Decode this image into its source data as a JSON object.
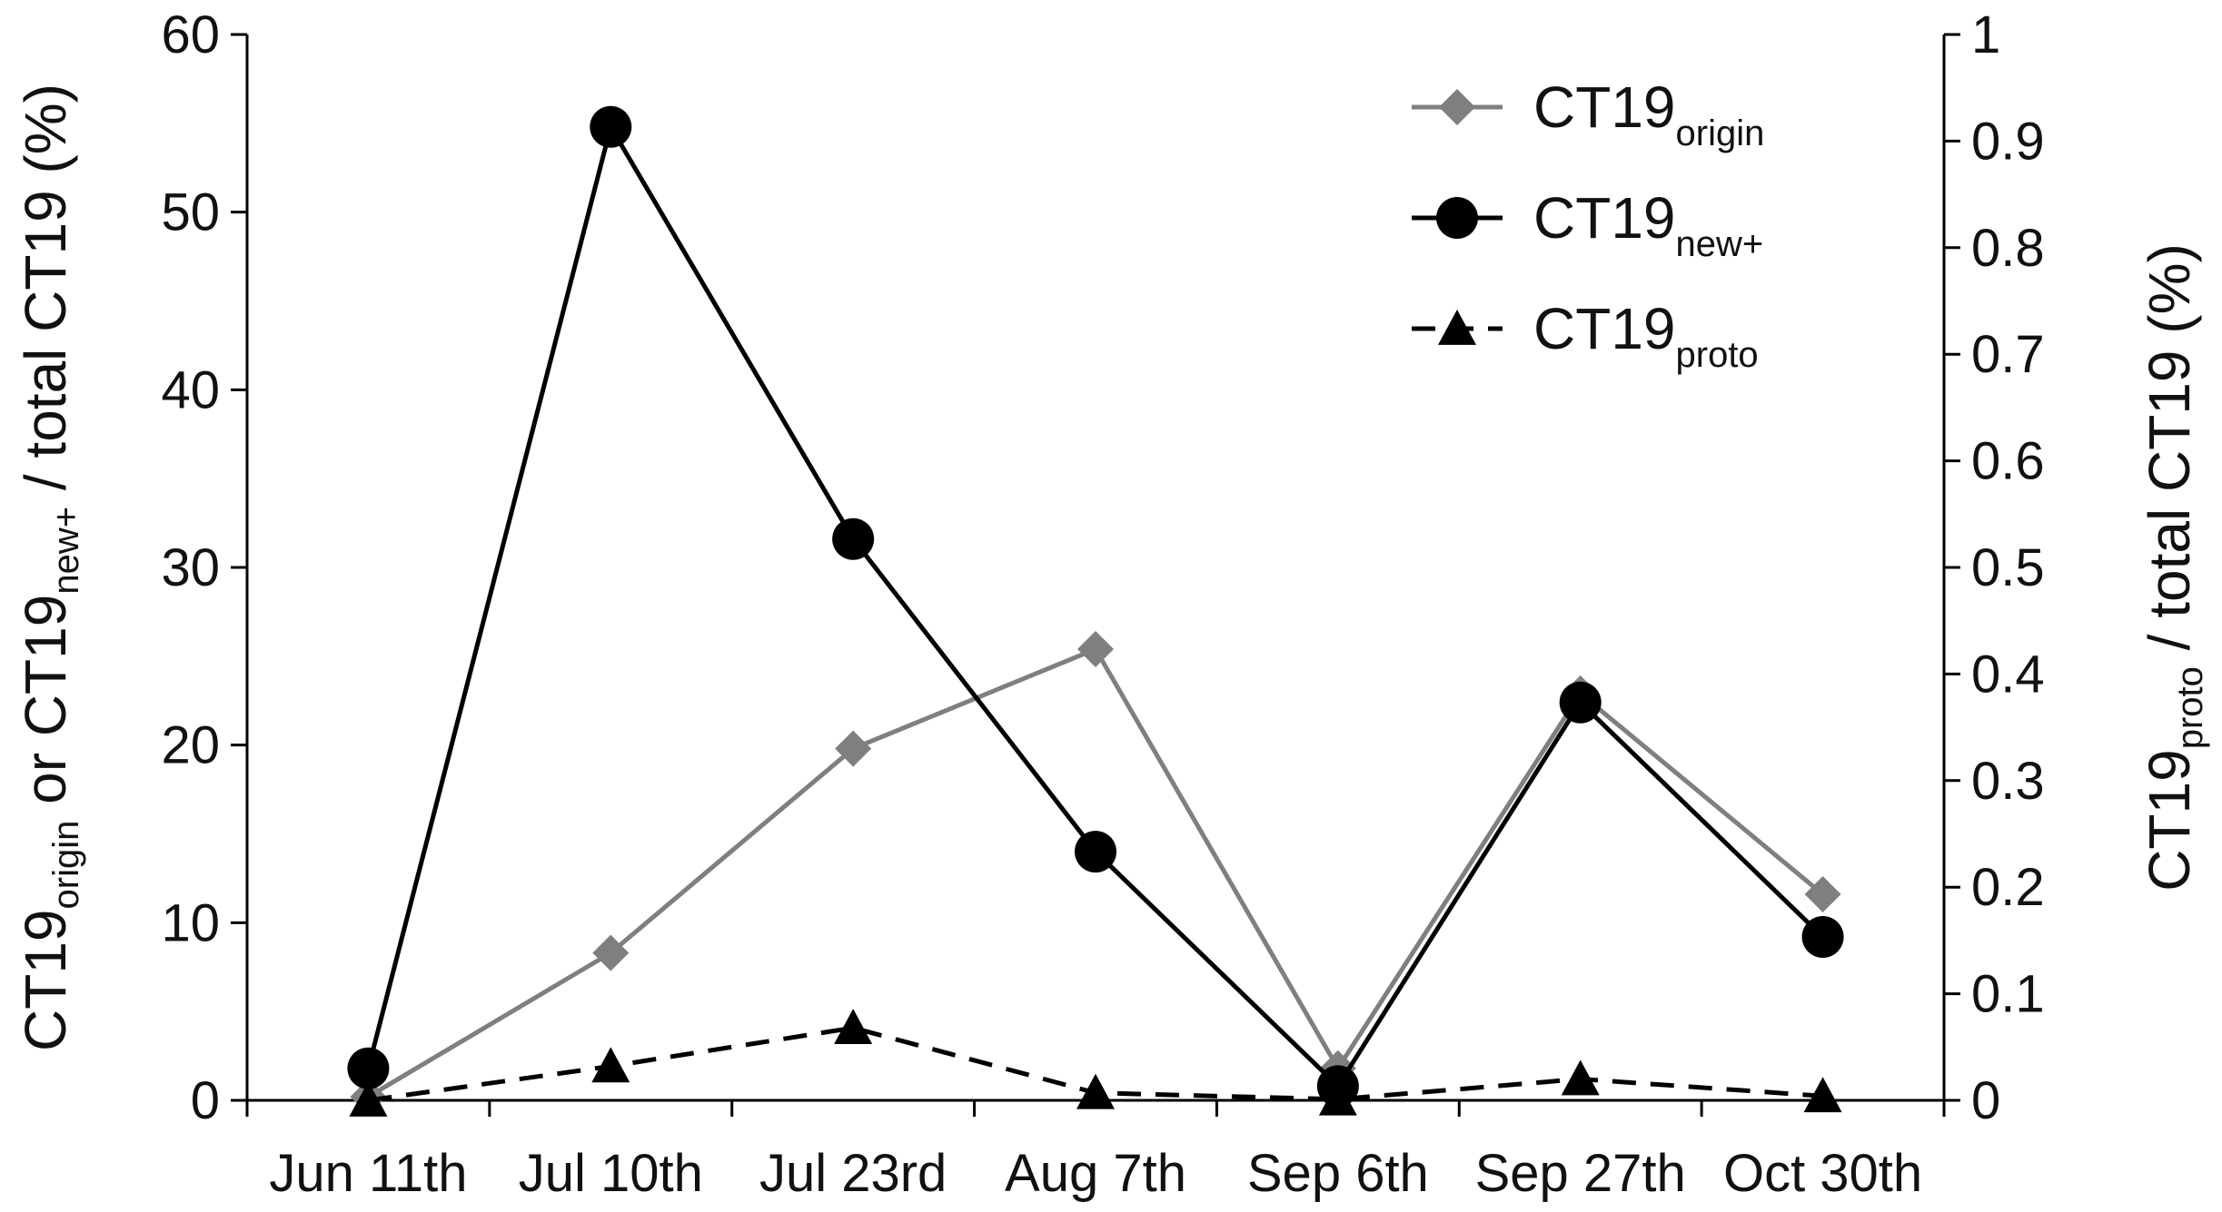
{
  "chart_data": {
    "type": "line",
    "categories": [
      "Jun 11th",
      "Jul 10th",
      "Jul 23rd",
      "Aug 7th",
      "Sep 6th",
      "Sep 27th",
      "Oct 30th"
    ],
    "y_left": {
      "label_parts": [
        "CT19",
        "origin",
        " or CT19",
        "new+",
        " / total CT19 (%)"
      ],
      "ylim": [
        0,
        60
      ],
      "ticks": [
        "0",
        "10",
        "20",
        "30",
        "40",
        "50",
        "60"
      ]
    },
    "y_right": {
      "label_parts": [
        "CT19",
        "proto",
        " / total CT19 (%)"
      ],
      "ylim": [
        0,
        1
      ],
      "ticks": [
        "0",
        "0.1",
        "0.2",
        "0.3",
        "0.4",
        "0.5",
        "0.6",
        "0.7",
        "0.8",
        "0.9",
        "1"
      ]
    },
    "series": [
      {
        "name": "CT19",
        "name_sub": "origin",
        "axis": "left",
        "color": "#7f7f7f",
        "marker": "diamond",
        "dash": "solid",
        "values": [
          0.2,
          8.3,
          19.8,
          25.4,
          1.8,
          22.9,
          11.6
        ]
      },
      {
        "name": "CT19",
        "name_sub": "new+",
        "axis": "left",
        "color": "#000000",
        "marker": "circle",
        "dash": "solid",
        "values": [
          1.8,
          54.8,
          31.6,
          14.0,
          0.8,
          22.4,
          9.2
        ]
      },
      {
        "name": "CT19",
        "name_sub": "proto",
        "axis": "right",
        "color": "#000000",
        "marker": "triangle",
        "dash": "dashed",
        "values": [
          0.0,
          0.032,
          0.068,
          0.007,
          0.001,
          0.02,
          0.004
        ]
      }
    ],
    "legend_position": "top-right",
    "grid": false
  }
}
